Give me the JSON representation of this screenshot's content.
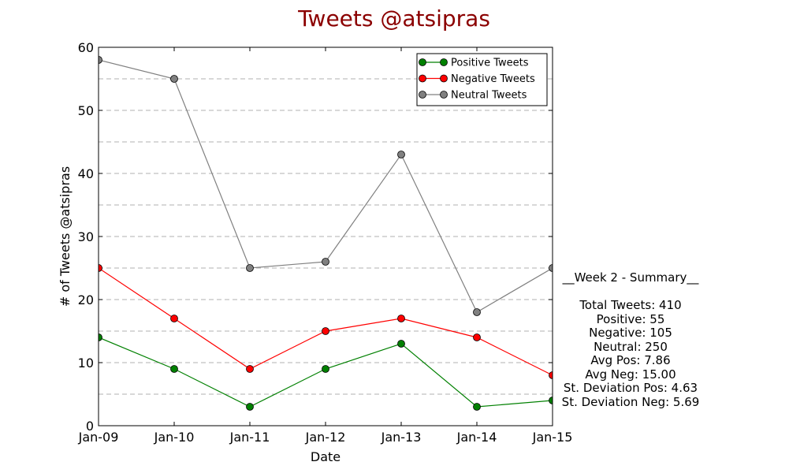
{
  "chart_data": {
    "type": "line",
    "title": "Tweets @atsipras",
    "xlabel": "Date",
    "ylabel": "# of Tweets @atsipras",
    "categories": [
      "Jan-09",
      "Jan-10",
      "Jan-11",
      "Jan-12",
      "Jan-13",
      "Jan-14",
      "Jan-15"
    ],
    "ylim": [
      0,
      60
    ],
    "yticks": [
      0,
      10,
      20,
      30,
      40,
      50,
      60
    ],
    "grid": "horizontal dashed, every 5",
    "legend": "top-right",
    "series": [
      {
        "name": "Positive Tweets",
        "color": "#008000",
        "values": [
          14,
          9,
          3,
          9,
          13,
          3,
          4
        ]
      },
      {
        "name": "Negative Tweets",
        "color": "#ff0000",
        "values": [
          25,
          17,
          9,
          15,
          17,
          14,
          8
        ]
      },
      {
        "name": "Neutral Tweets",
        "color": "#808080",
        "values": [
          58,
          55,
          25,
          26,
          43,
          18,
          25
        ]
      }
    ]
  },
  "summary": {
    "heading": "__Week 2 - Summary__",
    "total": "Total Tweets: 410",
    "positive": "Positive: 55",
    "negative": "Negative: 105",
    "neutral": "Neutral: 250",
    "avg_pos": "Avg Pos: 7.86",
    "avg_neg": "Avg Neg: 15.00",
    "std_pos": "St. Deviation Pos: 4.63",
    "std_neg": "St. Deviation Neg: 5.69"
  }
}
